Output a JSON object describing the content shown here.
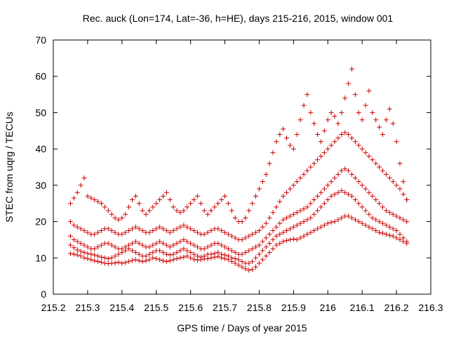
{
  "chart_data": {
    "type": "scatter",
    "title": "Rec. auck (Lon=174, Lat=-36, h=HE), days 215-216, 2015, window 001",
    "xlabel": "GPS time / Days of year 2015",
    "ylabel": "STEC from uqrg / TECUs",
    "xlim": [
      215.2,
      216.3
    ],
    "ylim": [
      0,
      70
    ],
    "xticks": [
      215.2,
      215.3,
      215.4,
      215.5,
      215.6,
      215.7,
      215.8,
      215.9,
      216,
      216.1,
      216.2,
      216.3
    ],
    "xtick_labels": [
      "215.2",
      "215.3",
      "215.4",
      "215.5",
      "215.6",
      "215.7",
      "215.8",
      "215.9",
      "216",
      "216.1",
      "216.2",
      "216.3"
    ],
    "yticks": [
      0,
      10,
      20,
      30,
      40,
      50,
      60,
      70
    ],
    "ytick_labels": [
      "0",
      "10",
      "20",
      "30",
      "40",
      "50",
      "60",
      "70"
    ],
    "grid": false,
    "marker": "+",
    "color": "#cc0000",
    "series": [
      {
        "x": [
          215.25,
          215.26,
          215.27,
          215.28,
          215.29,
          215.3,
          215.31,
          215.32,
          215.33,
          215.34,
          215.35,
          215.36,
          215.37,
          215.38,
          215.39,
          215.4,
          215.41,
          215.42,
          215.43,
          215.44,
          215.45,
          215.46,
          215.47,
          215.48,
          215.49,
          215.5,
          215.51,
          215.52,
          215.53,
          215.54,
          215.55,
          215.56,
          215.57,
          215.58,
          215.59,
          215.6,
          215.61,
          215.62,
          215.63,
          215.64,
          215.65,
          215.66,
          215.67,
          215.68,
          215.69,
          215.7,
          215.71,
          215.72,
          215.73,
          215.74,
          215.75,
          215.76,
          215.77,
          215.78,
          215.79,
          215.8,
          215.81,
          215.82,
          215.83,
          215.84,
          215.85,
          215.86,
          215.87,
          215.88,
          215.89,
          215.9,
          215.91,
          215.92,
          215.93,
          215.94,
          215.95,
          215.96,
          215.97,
          215.98,
          215.99,
          216.0,
          216.01,
          216.02,
          216.03,
          216.04,
          216.05,
          216.06,
          216.07,
          216.08,
          216.09,
          216.1,
          216.11,
          216.12,
          216.13,
          216.14,
          216.15,
          216.16,
          216.17,
          216.18,
          216.19,
          216.2,
          216.21,
          216.22,
          216.23
        ],
        "y": [
          11.2,
          11.0,
          10.8,
          10.5,
          10.0,
          9.8,
          9.5,
          9.2,
          9.0,
          8.8,
          8.5,
          8.4,
          8.5,
          8.6,
          8.8,
          8.5,
          8.7,
          9.0,
          9.3,
          9.5,
          9.2,
          9.0,
          9.2,
          9.5,
          10.0,
          9.8,
          9.5,
          9.2,
          9.0,
          9.2,
          9.5,
          9.8,
          10.0,
          10.2,
          10.5,
          10.0,
          9.6,
          9.4,
          9.5,
          9.7,
          9.8,
          10.0,
          10.2,
          10.4,
          10.0,
          9.8,
          9.5,
          9.0,
          8.5,
          8.0,
          7.5,
          7.0,
          6.6,
          6.8,
          7.5,
          8.5,
          9.5,
          10.5,
          11.5,
          12.5,
          13.5,
          14.0,
          14.5,
          14.8,
          15.0,
          15.2,
          15.0,
          15.5,
          16.0,
          16.5,
          17.0,
          17.5,
          18.0,
          18.5,
          19.0,
          19.5,
          19.8,
          20.0,
          20.5,
          21.0,
          21.5,
          21.5,
          21.0,
          20.5,
          20.0,
          19.5,
          19.0,
          18.5,
          18.0,
          17.5,
          17.0,
          16.8,
          16.5,
          16.2,
          16.0,
          15.5,
          15.0,
          14.5,
          14.0
        ]
      },
      {
        "x": [
          215.25,
          215.26,
          215.27,
          215.28,
          215.29,
          215.3,
          215.31,
          215.32,
          215.33,
          215.34,
          215.35,
          215.36,
          215.37,
          215.38,
          215.39,
          215.4,
          215.41,
          215.42,
          215.43,
          215.44,
          215.45,
          215.46,
          215.47,
          215.48,
          215.49,
          215.5,
          215.51,
          215.52,
          215.53,
          215.54,
          215.55,
          215.56,
          215.57,
          215.58,
          215.59,
          215.6,
          215.61,
          215.62,
          215.63,
          215.64,
          215.65,
          215.66,
          215.67,
          215.68,
          215.69,
          215.7,
          215.71,
          215.72,
          215.73,
          215.74,
          215.75,
          215.76,
          215.77,
          215.78,
          215.79,
          215.8,
          215.81,
          215.82,
          215.83,
          215.84,
          215.85,
          215.86,
          215.87,
          215.88,
          215.89,
          215.9,
          215.91,
          215.92,
          215.93,
          215.94,
          215.95,
          215.96,
          215.97,
          215.98,
          215.99,
          216.0,
          216.01,
          216.02,
          216.03,
          216.04,
          216.05,
          216.06,
          216.07,
          216.08,
          216.09,
          216.1,
          216.11,
          216.12,
          216.13,
          216.14,
          216.15,
          216.16,
          216.17,
          216.18,
          216.19,
          216.2,
          216.21,
          216.22,
          216.23
        ],
        "y": [
          13.5,
          12.8,
          12.2,
          11.8,
          11.5,
          11.2,
          11.0,
          10.8,
          10.5,
          10.2,
          10.0,
          9.8,
          10.0,
          10.5,
          11.0,
          11.5,
          12.0,
          12.5,
          12.0,
          11.5,
          11.0,
          10.5,
          10.5,
          11.0,
          11.5,
          12.0,
          12.0,
          11.5,
          11.0,
          10.8,
          11.0,
          11.5,
          12.0,
          12.5,
          12.0,
          11.5,
          11.0,
          10.5,
          10.2,
          10.5,
          11.0,
          11.0,
          11.2,
          11.5,
          11.0,
          10.8,
          10.5,
          10.0,
          9.8,
          9.5,
          9.0,
          8.5,
          8.5,
          9.0,
          10.0,
          11.0,
          12.0,
          13.0,
          14.0,
          15.0,
          16.0,
          16.5,
          17.0,
          17.5,
          18.0,
          18.5,
          19.0,
          19.5,
          20.0,
          20.5,
          21.0,
          22.0,
          23.0,
          24.0,
          25.0,
          26.0,
          27.0,
          27.5,
          28.0,
          28.5,
          28.0,
          27.5,
          27.0,
          26.0,
          25.0,
          24.0,
          23.0,
          22.0,
          21.0,
          20.5,
          20.0,
          19.5,
          19.0,
          18.5,
          18.0,
          17.5,
          16.5,
          15.5,
          14.5
        ]
      },
      {
        "x": [
          215.25,
          215.26,
          215.27,
          215.28,
          215.29,
          215.3,
          215.31,
          215.32,
          215.33,
          215.34,
          215.35,
          215.36,
          215.37,
          215.38,
          215.39,
          215.4,
          215.41,
          215.42,
          215.43,
          215.44,
          215.45,
          215.46,
          215.47,
          215.48,
          215.49,
          215.5,
          215.51,
          215.52,
          215.53,
          215.54,
          215.55,
          215.56,
          215.57,
          215.58,
          215.59,
          215.6,
          215.61,
          215.62,
          215.63,
          215.64,
          215.65,
          215.66,
          215.67,
          215.68,
          215.69,
          215.7,
          215.71,
          215.72,
          215.73,
          215.74,
          215.75,
          215.76,
          215.77,
          215.78,
          215.79,
          215.8,
          215.81,
          215.82,
          215.83,
          215.84,
          215.85,
          215.86,
          215.87,
          215.88,
          215.89,
          215.9,
          215.91,
          215.92,
          215.93,
          215.94,
          215.95,
          215.96,
          215.97,
          215.98,
          215.99,
          216.0,
          216.01,
          216.02,
          216.03,
          216.04,
          216.05,
          216.06,
          216.07,
          216.08,
          216.09,
          216.1,
          216.11,
          216.12,
          216.13,
          216.14,
          216.15,
          216.16,
          216.17,
          216.18,
          216.19,
          216.2,
          216.21,
          216.22,
          216.23
        ],
        "y": [
          16.0,
          15.0,
          14.5,
          14.0,
          13.5,
          13.0,
          12.5,
          12.5,
          13.0,
          13.5,
          14.0,
          14.0,
          13.5,
          13.0,
          12.5,
          12.5,
          13.0,
          13.5,
          14.0,
          14.5,
          14.0,
          13.5,
          13.0,
          13.0,
          13.5,
          14.0,
          14.5,
          14.0,
          13.5,
          13.0,
          13.5,
          14.0,
          14.5,
          15.0,
          14.5,
          14.0,
          13.5,
          13.0,
          12.5,
          12.5,
          13.0,
          13.5,
          14.0,
          14.0,
          13.5,
          13.0,
          12.5,
          12.0,
          11.5,
          11.0,
          11.0,
          11.5,
          12.0,
          12.5,
          13.0,
          13.5,
          14.5,
          15.5,
          16.5,
          17.5,
          18.5,
          19.5,
          20.5,
          21.0,
          21.5,
          22.0,
          22.5,
          23.0,
          23.5,
          24.0,
          25.0,
          26.0,
          27.0,
          28.0,
          29.0,
          30.0,
          31.0,
          32.0,
          33.0,
          34.0,
          34.5,
          34.0,
          33.0,
          32.0,
          31.0,
          30.0,
          29.0,
          28.0,
          27.0,
          26.0,
          25.0,
          24.0,
          23.0,
          22.5,
          22.0,
          21.5,
          21.0,
          20.5,
          20.0
        ]
      },
      {
        "x": [
          215.25,
          215.26,
          215.27,
          215.28,
          215.29,
          215.3,
          215.31,
          215.32,
          215.33,
          215.34,
          215.35,
          215.36,
          215.37,
          215.38,
          215.39,
          215.4,
          215.41,
          215.42,
          215.43,
          215.44,
          215.45,
          215.46,
          215.47,
          215.48,
          215.49,
          215.5,
          215.51,
          215.52,
          215.53,
          215.54,
          215.55,
          215.56,
          215.57,
          215.58,
          215.59,
          215.6,
          215.61,
          215.62,
          215.63,
          215.64,
          215.65,
          215.66,
          215.67,
          215.68,
          215.69,
          215.7,
          215.71,
          215.72,
          215.73,
          215.74,
          215.75,
          215.76,
          215.77,
          215.78,
          215.79,
          215.8,
          215.81,
          215.82,
          215.83,
          215.84,
          215.85,
          215.86,
          215.87,
          215.88,
          215.89,
          215.9,
          215.91,
          215.92,
          215.93,
          215.94,
          215.95,
          215.96,
          215.97,
          215.98,
          215.99,
          216.0,
          216.01,
          216.02,
          216.03,
          216.04,
          216.05,
          216.06,
          216.07,
          216.08,
          216.09,
          216.1,
          216.11,
          216.12,
          216.13,
          216.14,
          216.15,
          216.16,
          216.17,
          216.18,
          216.19,
          216.2,
          216.21,
          216.22,
          216.23
        ],
        "y": [
          20.0,
          19.0,
          18.5,
          18.0,
          17.5,
          17.0,
          16.5,
          16.5,
          17.0,
          17.5,
          18.0,
          18.0,
          17.5,
          17.0,
          16.5,
          16.5,
          17.0,
          17.5,
          18.0,
          18.5,
          18.0,
          17.5,
          17.0,
          17.0,
          17.5,
          18.0,
          18.5,
          18.0,
          17.5,
          17.0,
          17.5,
          18.0,
          18.5,
          19.0,
          18.5,
          18.0,
          17.5,
          17.0,
          16.5,
          16.5,
          17.0,
          17.5,
          18.0,
          18.0,
          17.5,
          17.0,
          16.5,
          16.0,
          15.5,
          15.0,
          15.0,
          15.5,
          16.0,
          16.5,
          17.0,
          17.5,
          18.5,
          19.5,
          21.0,
          22.5,
          24.0,
          25.5,
          27.0,
          28.0,
          29.0,
          30.0,
          31.0,
          32.0,
          33.0,
          34.0,
          35.0,
          36.0,
          37.0,
          38.0,
          39.0,
          40.0,
          41.0,
          42.0,
          43.0,
          44.0,
          44.5,
          44.0,
          43.0,
          42.0,
          41.0,
          40.0,
          39.0,
          38.0,
          37.0,
          36.0,
          35.0,
          34.0,
          33.0,
          32.0,
          31.0,
          30.0,
          29.0,
          27.5,
          26.0
        ]
      },
      {
        "x": [
          215.25,
          215.26,
          215.27,
          215.28,
          215.29,
          215.3,
          215.31,
          215.32,
          215.33,
          215.34,
          215.35,
          215.36,
          215.37,
          215.38,
          215.39,
          215.4,
          215.41,
          215.42,
          215.43,
          215.44,
          215.45,
          215.46,
          215.47,
          215.48,
          215.49,
          215.5,
          215.51,
          215.52,
          215.53,
          215.54,
          215.55,
          215.56,
          215.57,
          215.58,
          215.59,
          215.6,
          215.61,
          215.62,
          215.63,
          215.64,
          215.65,
          215.66,
          215.67,
          215.68,
          215.69,
          215.7,
          215.71,
          215.72,
          215.73,
          215.74,
          215.75,
          215.76,
          215.77,
          215.78,
          215.79,
          215.8,
          215.81,
          215.82,
          215.83,
          215.84,
          215.85,
          215.86,
          215.87,
          215.88,
          215.89,
          215.9,
          215.91,
          215.92,
          215.93,
          215.94,
          215.95,
          215.96,
          215.97,
          215.98,
          215.99,
          216.0,
          216.01,
          216.02,
          216.03,
          216.04,
          216.05,
          216.06,
          216.07,
          216.08,
          216.09,
          216.1,
          216.11,
          216.12,
          216.13,
          216.14,
          216.15,
          216.16,
          216.17,
          216.18,
          216.19,
          216.2,
          216.21,
          216.22,
          216.23
        ],
        "y": [
          25.0,
          26.5,
          28.0,
          30.0,
          32.0,
          27.0,
          26.5,
          26.0,
          25.5,
          25.0,
          24.0,
          23.0,
          22.0,
          21.0,
          20.5,
          21.0,
          22.0,
          24.0,
          26.0,
          27.0,
          25.0,
          23.0,
          22.0,
          23.0,
          24.0,
          25.0,
          26.0,
          27.0,
          28.0,
          26.0,
          24.0,
          23.0,
          22.5,
          23.0,
          24.0,
          25.0,
          26.0,
          27.0,
          25.0,
          23.0,
          22.0,
          23.0,
          24.0,
          25.0,
          26.0,
          27.0,
          25.0,
          23.0,
          21.0,
          20.0,
          20.0,
          21.0,
          23.0,
          25.0,
          27.0,
          29.0,
          31.0,
          33.0,
          36.0,
          39.0,
          42.0,
          44.0,
          45.5,
          43.0,
          41.0,
          40.0,
          44.0,
          48.0,
          52.0,
          55.0,
          50.0,
          47.0,
          44.0,
          42.0,
          45.0,
          48.0,
          50.0,
          49.0,
          47.0,
          50.0,
          54.0,
          58.0,
          62.0,
          55.0,
          50.0,
          48.0,
          52.0,
          56.0,
          50.0,
          48.0,
          46.0,
          44.0,
          48.0,
          51.0,
          47.0,
          42.0,
          36.0,
          31.0,
          26.0
        ]
      }
    ]
  }
}
